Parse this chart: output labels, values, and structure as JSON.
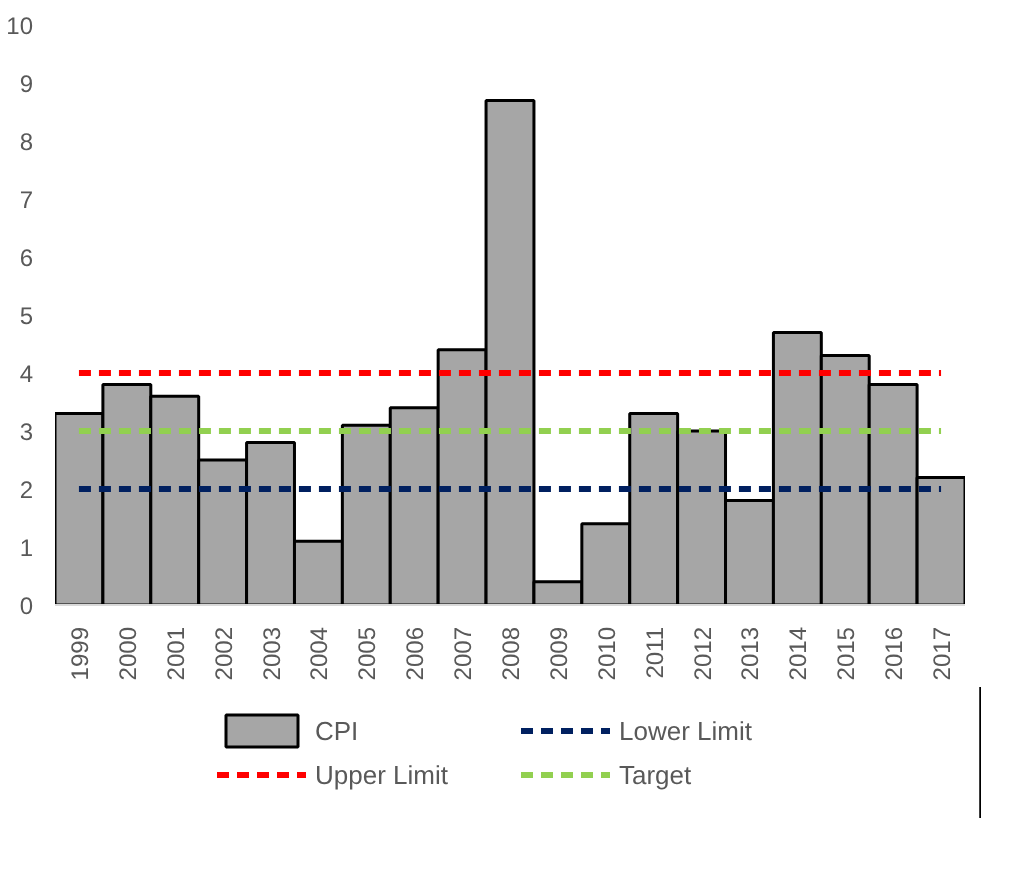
{
  "chart_data": {
    "type": "bar",
    "categories": [
      "1999",
      "2000",
      "2001",
      "2002",
      "2003",
      "2004",
      "2005",
      "2006",
      "2007",
      "2008",
      "2009",
      "2010",
      "2011",
      "2012",
      "2013",
      "2014",
      "2015",
      "2016",
      "2017"
    ],
    "series": [
      {
        "name": "CPI",
        "color": "#a6a6a6",
        "values": [
          3.3,
          3.8,
          3.6,
          2.5,
          2.8,
          1.1,
          3.1,
          3.4,
          4.4,
          8.7,
          0.4,
          1.4,
          3.3,
          3.0,
          1.8,
          4.7,
          4.3,
          3.8,
          2.2
        ]
      },
      {
        "name": "Upper Limit",
        "type": "line",
        "line_style": "dashed",
        "color": "#ff0000",
        "values": [
          4,
          4,
          4,
          4,
          4,
          4,
          4,
          4,
          4,
          4,
          4,
          4,
          4,
          4,
          4,
          4,
          4,
          4,
          4
        ]
      },
      {
        "name": "Lower Limit",
        "type": "line",
        "line_style": "dashed",
        "color": "#002060",
        "values": [
          2,
          2,
          2,
          2,
          2,
          2,
          2,
          2,
          2,
          2,
          2,
          2,
          2,
          2,
          2,
          2,
          2,
          2,
          2
        ]
      },
      {
        "name": "Target",
        "type": "line",
        "line_style": "dashed",
        "color": "#92d050",
        "values": [
          3,
          3,
          3,
          3,
          3,
          3,
          3,
          3,
          3,
          3,
          3,
          3,
          3,
          3,
          3,
          3,
          3,
          3,
          3
        ]
      }
    ],
    "ylim": [
      0,
      10
    ],
    "yticks": [
      0,
      1,
      2,
      3,
      4,
      5,
      6,
      7,
      8,
      9,
      10
    ],
    "grid": false,
    "legend": "bottom"
  }
}
